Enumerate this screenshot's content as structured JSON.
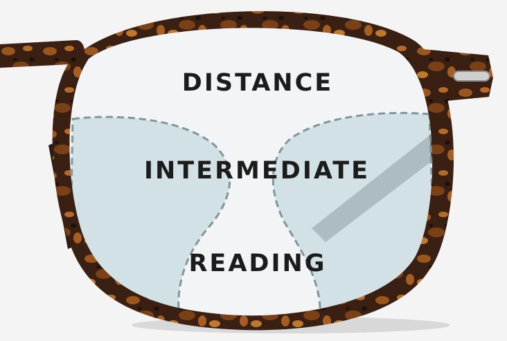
{
  "labels": {
    "distance": "DISTANCE",
    "intermediate": "INTERMEDIATE",
    "reading": "READING"
  },
  "colors": {
    "background": "#f4f4f4",
    "frame_dark": "#2e1a10",
    "frame_tortoise": "#8a4a1c",
    "lens": "#f2f4f5",
    "zone_tint": "#c9dbe0",
    "zone_outline": "#7f969c",
    "temple_arm": "#4a4f52",
    "label_text": "#1c1c1c"
  },
  "icons": [
    "eyeglasses-frame",
    "lens-zone-outline"
  ]
}
